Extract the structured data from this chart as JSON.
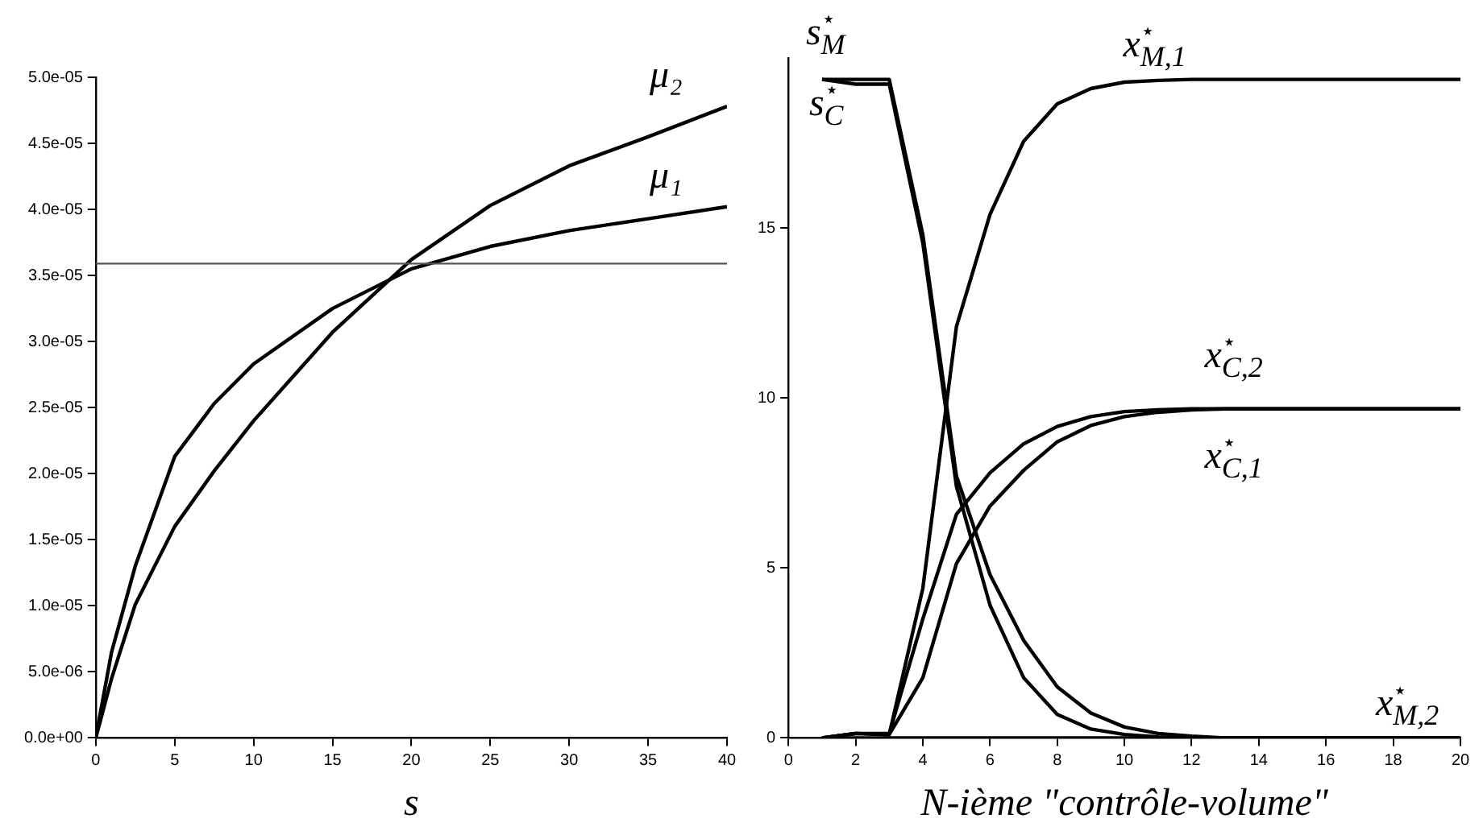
{
  "chart_data": [
    {
      "type": "line",
      "xlabel": "s",
      "x": [
        0,
        1,
        2.5,
        5,
        7.5,
        10,
        15,
        20,
        25,
        30,
        35,
        40
      ],
      "xlim": [
        0,
        40
      ],
      "xticks": [
        0,
        5,
        10,
        15,
        20,
        25,
        30,
        35,
        40
      ],
      "ylim": [
        0,
        5e-05
      ],
      "yticks": [
        {
          "value": 0,
          "label": "0.0e+00"
        },
        {
          "value": 5e-06,
          "label": "5.0e-06"
        },
        {
          "value": 1e-05,
          "label": "1.0e-05"
        },
        {
          "value": 1.5e-05,
          "label": "1.5e-05"
        },
        {
          "value": 2e-05,
          "label": "2.0e-05"
        },
        {
          "value": 2.5e-05,
          "label": "2.5e-05"
        },
        {
          "value": 3e-05,
          "label": "3.0e-05"
        },
        {
          "value": 3.5e-05,
          "label": "3.5e-05"
        },
        {
          "value": 4e-05,
          "label": "4.0e-05"
        },
        {
          "value": 4.5e-05,
          "label": "4.5e-05"
        },
        {
          "value": 5e-05,
          "label": "5.0e-05"
        }
      ],
      "series": [
        {
          "name": "μ₂",
          "color": "#000000",
          "values": [
            0,
            4.5e-06,
            1.01e-05,
            1.6e-05,
            2.02e-05,
            2.4e-05,
            3.07e-05,
            3.62e-05,
            4.03e-05,
            4.33e-05,
            4.55e-05,
            4.78e-05
          ]
        },
        {
          "name": "μ₁",
          "color": "#000000",
          "values": [
            0,
            6.5e-06,
            1.3e-05,
            2.13e-05,
            2.53e-05,
            2.83e-05,
            3.25e-05,
            3.55e-05,
            3.72e-05,
            3.84e-05,
            3.93e-05,
            4.02e-05
          ]
        }
      ],
      "ref_lines": [
        {
          "axis": "y",
          "value": 3.59e-05,
          "color": "#555555"
        }
      ]
    },
    {
      "type": "line",
      "xlabel": "N-ième \"contrôle-volume\"",
      "x": [
        1,
        2,
        3,
        4,
        5,
        6,
        7,
        8,
        9,
        10,
        11,
        12,
        13,
        14,
        15,
        16,
        17,
        18,
        19,
        20
      ],
      "xlim": [
        0,
        20
      ],
      "xticks": [
        0,
        2,
        4,
        6,
        8,
        10,
        12,
        14,
        16,
        18,
        20
      ],
      "ylim": [
        0,
        20
      ],
      "yticks": [
        0,
        5,
        10,
        15
      ],
      "series": [
        {
          "name": "s$^{⋆}$$_{M}$",
          "color": "#000000",
          "values": [
            19.37,
            19.37,
            19.37,
            14.8,
            7.7,
            4.8,
            2.87,
            1.5,
            0.73,
            0.32,
            0.13,
            0.05,
            0,
            0,
            0,
            0,
            0,
            0,
            0,
            0
          ]
        },
        {
          "name": "s$^{⋆}$$_{C}$",
          "color": "#000000",
          "values": [
            19.37,
            19.23,
            19.23,
            14.56,
            7.4,
            3.9,
            1.77,
            0.69,
            0.26,
            0.1,
            0.03,
            0,
            0,
            0,
            0,
            0,
            0,
            0,
            0,
            0
          ]
        },
        {
          "name": "x$^{⋆}$$_{M,1}$",
          "color": "#000000",
          "values": [
            0,
            0.13,
            0.1,
            4.4,
            12.1,
            15.4,
            17.55,
            18.65,
            19.1,
            19.29,
            19.34,
            19.37,
            19.37,
            19.37,
            19.37,
            19.37,
            19.37,
            19.37,
            19.37,
            19.37
          ]
        },
        {
          "name": "x$^{⋆}$$_{C,2}$",
          "color": "#000000",
          "values": [
            0,
            0.13,
            0.13,
            3.5,
            6.58,
            7.8,
            8.65,
            9.16,
            9.45,
            9.6,
            9.65,
            9.68,
            9.68,
            9.68,
            9.68,
            9.68,
            9.68,
            9.68,
            9.68,
            9.68
          ]
        },
        {
          "name": "x$^{⋆}$$_{C,1}$",
          "color": "#000000",
          "values": [
            0,
            0.13,
            0.1,
            1.77,
            5.13,
            6.82,
            7.87,
            8.71,
            9.19,
            9.45,
            9.58,
            9.65,
            9.68,
            9.68,
            9.68,
            9.68,
            9.68,
            9.68,
            9.68,
            9.68
          ]
        },
        {
          "name": "x$^{⋆}$$_{M,2}$",
          "color": "#000000",
          "values": [
            0,
            0,
            0,
            0,
            0,
            0,
            0,
            0,
            0,
            0,
            0,
            0,
            0,
            0,
            0,
            0,
            0,
            0,
            0,
            0
          ]
        }
      ]
    }
  ]
}
